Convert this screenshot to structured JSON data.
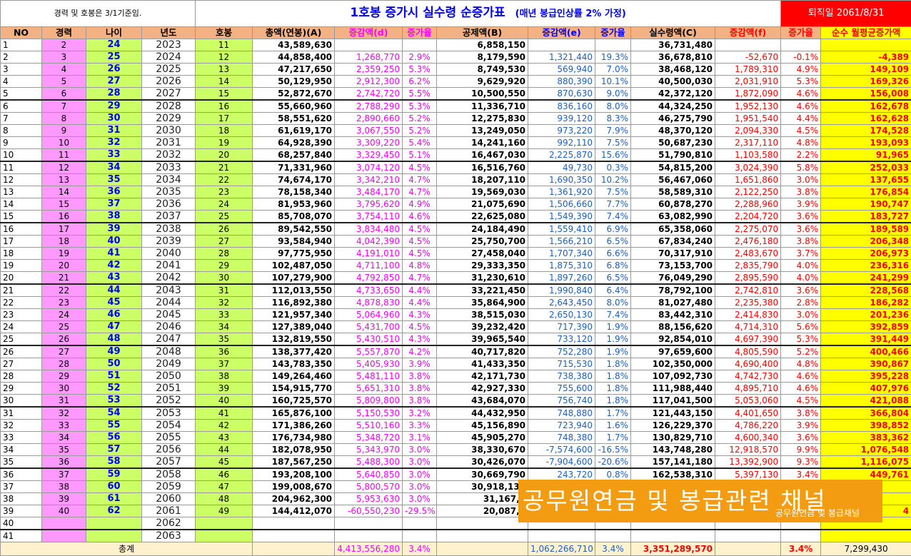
{
  "note": "경력 및 호봉은 3/1기준임.",
  "title": "1호봉 증가시 실수령 순증가표",
  "subtitle": "(매년 봉급인상률 2% 가정)",
  "retire": "퇴직일 2061/8/31",
  "headers": [
    "NO",
    "경력",
    "나이",
    "년도",
    "호봉",
    "총액(연봉)(A)",
    "증감액(d)",
    "증가율",
    "공제액(B)",
    "증감액(e)",
    "증가율",
    "실수령액(C)",
    "증감액(f)",
    "증가율",
    "순수 월평균증가액"
  ],
  "rows": [
    [
      "1",
      "2",
      "24",
      "2023",
      "11",
      "43,589,630",
      "",
      "",
      "6,858,150",
      "",
      "",
      "36,731,480",
      "",
      "",
      ""
    ],
    [
      "2",
      "3",
      "25",
      "2024",
      "12",
      "44,858,400",
      "1,268,770",
      "2.9%",
      "8,179,590",
      "1,321,440",
      "19.3%",
      "36,678,810",
      "-52,670",
      "-0.1%",
      "-4,389"
    ],
    [
      "3",
      "4",
      "26",
      "2025",
      "13",
      "47,217,650",
      "2,359,250",
      "5.3%",
      "8,749,530",
      "569,940",
      "7.0%",
      "38,468,120",
      "1,789,310",
      "4.9%",
      "149,109"
    ],
    [
      "4",
      "5",
      "27",
      "2026",
      "14",
      "50,129,950",
      "2,912,300",
      "6.2%",
      "9,629,920",
      "880,390",
      "10.1%",
      "40,500,030",
      "2,031,910",
      "5.3%",
      "169,326"
    ],
    [
      "5",
      "6",
      "28",
      "2027",
      "15",
      "52,872,670",
      "2,742,720",
      "5.5%",
      "10,500,550",
      "870,630",
      "9.0%",
      "42,372,120",
      "1,872,090",
      "4.6%",
      "156,008"
    ],
    [
      "6",
      "7",
      "29",
      "2028",
      "16",
      "55,660,960",
      "2,788,290",
      "5.3%",
      "11,336,710",
      "836,160",
      "8.0%",
      "44,324,250",
      "1,952,130",
      "4.6%",
      "162,678"
    ],
    [
      "7",
      "8",
      "30",
      "2029",
      "17",
      "58,551,620",
      "2,890,660",
      "5.2%",
      "12,275,830",
      "939,120",
      "8.3%",
      "46,275,790",
      "1,951,540",
      "4.4%",
      "162,628"
    ],
    [
      "8",
      "9",
      "31",
      "2030",
      "18",
      "61,619,170",
      "3,067,550",
      "5.2%",
      "13,249,050",
      "973,220",
      "7.9%",
      "48,370,120",
      "2,094,330",
      "4.5%",
      "174,528"
    ],
    [
      "9",
      "10",
      "32",
      "2031",
      "19",
      "64,928,390",
      "3,309,220",
      "5.4%",
      "14,241,160",
      "992,110",
      "7.5%",
      "50,687,230",
      "2,317,110",
      "4.8%",
      "193,093"
    ],
    [
      "10",
      "11",
      "33",
      "2032",
      "20",
      "68,257,840",
      "3,329,450",
      "5.1%",
      "16,467,030",
      "2,225,870",
      "15.6%",
      "51,790,810",
      "1,103,580",
      "2.2%",
      "91,965"
    ],
    [
      "11",
      "12",
      "34",
      "2033",
      "21",
      "71,331,960",
      "3,074,120",
      "4.5%",
      "16,516,760",
      "49,730",
      "0.3%",
      "54,815,200",
      "3,024,390",
      "5.8%",
      "252,033"
    ],
    [
      "12",
      "13",
      "35",
      "2034",
      "22",
      "74,674,170",
      "3,342,210",
      "4.7%",
      "18,207,110",
      "1,690,350",
      "10.2%",
      "56,467,060",
      "1,651,860",
      "3.0%",
      "137,655"
    ],
    [
      "13",
      "14",
      "36",
      "2035",
      "23",
      "78,158,340",
      "3,484,170",
      "4.7%",
      "19,569,030",
      "1,361,920",
      "7.5%",
      "58,589,310",
      "2,122,250",
      "3.8%",
      "176,854"
    ],
    [
      "14",
      "15",
      "37",
      "2036",
      "24",
      "81,953,960",
      "3,795,620",
      "4.9%",
      "21,075,690",
      "1,506,660",
      "7.7%",
      "60,878,270",
      "2,288,960",
      "3.9%",
      "190,747"
    ],
    [
      "15",
      "16",
      "38",
      "2037",
      "25",
      "85,708,070",
      "3,754,110",
      "4.6%",
      "22,625,080",
      "1,549,390",
      "7.4%",
      "63,082,990",
      "2,204,720",
      "3.6%",
      "183,727"
    ],
    [
      "16",
      "17",
      "39",
      "2038",
      "26",
      "89,542,550",
      "3,834,480",
      "4.5%",
      "24,184,490",
      "1,559,410",
      "6.9%",
      "65,358,060",
      "2,275,070",
      "3.6%",
      "189,589"
    ],
    [
      "17",
      "18",
      "40",
      "2039",
      "27",
      "93,584,940",
      "4,042,390",
      "4.5%",
      "25,750,700",
      "1,566,210",
      "6.5%",
      "67,834,240",
      "2,476,180",
      "3.8%",
      "206,348"
    ],
    [
      "18",
      "19",
      "41",
      "2040",
      "28",
      "97,775,950",
      "4,191,010",
      "4.5%",
      "27,458,040",
      "1,707,340",
      "6.6%",
      "70,317,910",
      "2,483,670",
      "3.7%",
      "206,973"
    ],
    [
      "19",
      "20",
      "42",
      "2041",
      "29",
      "102,487,050",
      "4,711,100",
      "4.8%",
      "29,333,350",
      "1,875,310",
      "6.8%",
      "73,153,700",
      "2,835,790",
      "4.0%",
      "236,316"
    ],
    [
      "20",
      "21",
      "43",
      "2042",
      "30",
      "107,279,900",
      "4,792,850",
      "4.7%",
      "31,230,610",
      "1,897,260",
      "6.5%",
      "76,049,290",
      "2,895,590",
      "4.0%",
      "241,299"
    ],
    [
      "21",
      "22",
      "44",
      "2043",
      "31",
      "112,013,550",
      "4,733,650",
      "4.4%",
      "33,221,450",
      "1,990,840",
      "6.4%",
      "78,792,100",
      "2,742,810",
      "3.6%",
      "228,568"
    ],
    [
      "22",
      "23",
      "45",
      "2044",
      "32",
      "116,892,380",
      "4,878,830",
      "4.4%",
      "35,864,900",
      "2,643,450",
      "8.0%",
      "81,027,480",
      "2,235,380",
      "2.8%",
      "186,282"
    ],
    [
      "23",
      "24",
      "46",
      "2045",
      "33",
      "121,957,340",
      "5,064,960",
      "4.3%",
      "38,515,030",
      "2,650,130",
      "7.4%",
      "83,442,310",
      "2,414,830",
      "3.0%",
      "201,236"
    ],
    [
      "24",
      "25",
      "47",
      "2046",
      "34",
      "127,389,040",
      "5,431,700",
      "4.5%",
      "39,232,420",
      "717,390",
      "1.9%",
      "88,156,620",
      "4,714,310",
      "5.6%",
      "392,859"
    ],
    [
      "25",
      "26",
      "48",
      "2047",
      "35",
      "132,819,550",
      "5,430,510",
      "4.3%",
      "39,965,540",
      "733,120",
      "1.9%",
      "92,854,010",
      "4,697,390",
      "5.3%",
      "391,449"
    ],
    [
      "26",
      "27",
      "49",
      "2048",
      "36",
      "138,377,420",
      "5,557,870",
      "4.2%",
      "40,717,820",
      "752,280",
      "1.9%",
      "97,659,600",
      "4,805,590",
      "5.2%",
      "400,466"
    ],
    [
      "27",
      "28",
      "50",
      "2049",
      "37",
      "143,783,350",
      "5,405,930",
      "3.9%",
      "41,433,350",
      "715,530",
      "1.8%",
      "102,350,000",
      "4,690,400",
      "4.8%",
      "390,867"
    ],
    [
      "28",
      "29",
      "51",
      "2050",
      "38",
      "149,264,460",
      "5,481,110",
      "3.8%",
      "42,171,730",
      "738,380",
      "1.8%",
      "107,092,730",
      "4,742,730",
      "4.6%",
      "395,228"
    ],
    [
      "29",
      "30",
      "52",
      "2051",
      "39",
      "154,915,770",
      "5,651,310",
      "3.8%",
      "42,927,330",
      "755,600",
      "1.8%",
      "111,988,440",
      "4,895,710",
      "4.6%",
      "407,976"
    ],
    [
      "30",
      "31",
      "53",
      "2052",
      "40",
      "160,725,570",
      "5,809,800",
      "3.8%",
      "43,684,070",
      "756,740",
      "1.8%",
      "117,041,500",
      "5,053,060",
      "4.5%",
      "421,088"
    ],
    [
      "31",
      "32",
      "54",
      "2053",
      "41",
      "165,876,100",
      "5,150,530",
      "3.2%",
      "44,432,950",
      "748,880",
      "1.7%",
      "121,443,150",
      "4,401,650",
      "3.8%",
      "366,804"
    ],
    [
      "32",
      "33",
      "55",
      "2054",
      "42",
      "171,386,260",
      "5,510,160",
      "3.3%",
      "45,156,890",
      "723,940",
      "1.6%",
      "126,229,370",
      "4,786,220",
      "3.9%",
      "398,852"
    ],
    [
      "33",
      "34",
      "56",
      "2055",
      "43",
      "176,734,980",
      "5,348,720",
      "3.1%",
      "45,905,270",
      "748,380",
      "1.7%",
      "130,829,710",
      "4,600,340",
      "3.6%",
      "383,362"
    ],
    [
      "34",
      "35",
      "57",
      "2056",
      "44",
      "182,078,950",
      "5,343,970",
      "3.0%",
      "38,330,670",
      "-7,574,600",
      "-16.5%",
      "143,748,280",
      "12,918,570",
      "9.9%",
      "1,076,548"
    ],
    [
      "35",
      "36",
      "58",
      "2057",
      "45",
      "187,567,250",
      "5,488,300",
      "3.0%",
      "30,426,070",
      "-7,904,600",
      "-20.6%",
      "157,141,180",
      "13,392,900",
      "9.3%",
      "1,116,075"
    ],
    [
      "36",
      "37",
      "59",
      "2058",
      "46",
      "193,208,100",
      "5,640,850",
      "3.0%",
      "30,669,790",
      "243,720",
      "0.8%",
      "162,538,310",
      "5,397,130",
      "3.4%",
      "449,761"
    ],
    [
      "37",
      "38",
      "60",
      "2059",
      "47",
      "199,008,670",
      "5,800,570",
      "3.0%",
      "30,918,130",
      "",
      "",
      "",
      "",
      "",
      ""
    ],
    [
      "38",
      "39",
      "61",
      "2060",
      "48",
      "204,962,300",
      "5,953,630",
      "3.0%",
      "31,167,4",
      "",
      "",
      "",
      "",
      "",
      ""
    ],
    [
      "39",
      "40",
      "62",
      "2061",
      "49",
      "144,412,070",
      "-60,550,230",
      "-29.5%",
      "20,087,4",
      "",
      "",
      "",
      "",
      "",
      "4"
    ],
    [
      "40",
      "",
      "",
      "2062",
      "",
      "",
      "",
      "",
      "",
      "",
      "",
      "",
      "",
      "",
      ""
    ],
    [
      "41",
      "",
      "",
      "2063",
      "",
      "",
      "",
      "",
      "",
      "",
      "",
      "",
      "",
      "",
      ""
    ]
  ],
  "total": {
    "label": "총계",
    "d": "4,413,556,280",
    "d_rate": "3.4%",
    "e": "1,062,266,710",
    "e_rate": "3.4%",
    "c": "3,351,289,570",
    "f_rate": "3.4%",
    "monthly": "7,299,430"
  },
  "overlay": {
    "main": "공무원연금 및 봉급관련 채널",
    "sub": "공무원연금 및 봉급채널"
  },
  "colors": {
    "header_bg": "#f4b183",
    "age_bg": "#ccff66",
    "career_bg": "#ff99ff",
    "monthly_bg": "#ffff00",
    "overlay_bg": "#f39c12"
  }
}
